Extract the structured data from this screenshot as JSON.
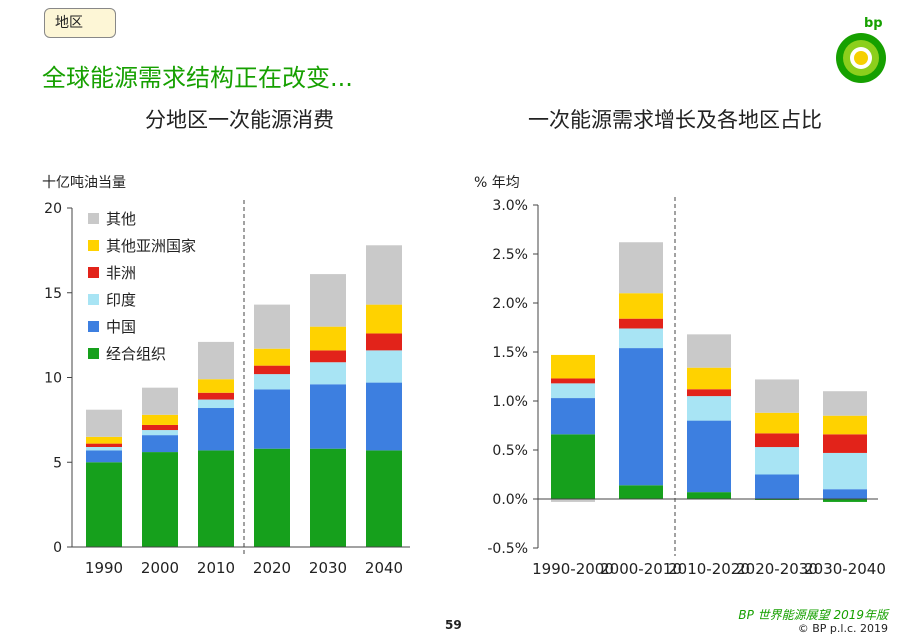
{
  "header": {
    "tag": "地区",
    "headline": "全球能源需求结构正在改变...",
    "logo_text": "bp",
    "brand_green": "#16a000",
    "brand_yellow": "#f5d000"
  },
  "footer": {
    "page_number": "59",
    "source": "BP 世界能源展望 2019年版",
    "copyright": "© BP p.l.c. 2019"
  },
  "chart_data": [
    {
      "type": "bar",
      "stacked": true,
      "title": "分地区一次能源消费",
      "ylabel": "十亿吨油当量",
      "categories": [
        "1990",
        "2000",
        "2010",
        "2020",
        "2030",
        "2040"
      ],
      "ylim": [
        0,
        20
      ],
      "yticks": [
        "0",
        "5",
        "10",
        "15",
        "20"
      ],
      "divider_after_category": 2,
      "legend_placement": "top-left",
      "series": [
        {
          "name": "经合组织",
          "color": "#16a01c",
          "values": [
            5.0,
            5.6,
            5.7,
            5.8,
            5.8,
            5.7
          ]
        },
        {
          "name": "中国",
          "color": "#3d7fe0",
          "values": [
            0.7,
            1.0,
            2.5,
            3.5,
            3.8,
            4.0
          ]
        },
        {
          "name": "印度",
          "color": "#a8e4f4",
          "values": [
            0.2,
            0.3,
            0.5,
            0.9,
            1.3,
            1.9
          ]
        },
        {
          "name": "非洲",
          "color": "#e2231a",
          "values": [
            0.2,
            0.3,
            0.4,
            0.5,
            0.7,
            1.0
          ]
        },
        {
          "name": "其他亚洲国家",
          "color": "#ffd200",
          "values": [
            0.4,
            0.6,
            0.8,
            1.0,
            1.4,
            1.7
          ]
        },
        {
          "name": "其他",
          "color": "#c9c9c9",
          "values": [
            1.6,
            1.6,
            2.2,
            2.6,
            3.1,
            3.5
          ]
        }
      ]
    },
    {
      "type": "bar",
      "stacked": true,
      "title": "一次能源需求增长及各地区占比",
      "ylabel": "% 年均",
      "categories": [
        "1990-2000",
        "2000-2010",
        "2010-2020",
        "2020-2030",
        "2030-2040"
      ],
      "ylim": [
        -0.5,
        3.0
      ],
      "yticks": [
        "-0.5%",
        "0.0%",
        "0.5%",
        "1.0%",
        "1.5%",
        "2.0%",
        "2.5%",
        "3.0%"
      ],
      "divider_after_category": 1,
      "series": [
        {
          "name": "经合组织",
          "color": "#16a01c",
          "values": [
            0.66,
            0.14,
            0.07,
            -0.01,
            -0.03
          ]
        },
        {
          "name": "中国",
          "color": "#3d7fe0",
          "values": [
            0.37,
            1.4,
            0.73,
            0.25,
            0.1
          ]
        },
        {
          "name": "印度",
          "color": "#a8e4f4",
          "values": [
            0.15,
            0.2,
            0.25,
            0.28,
            0.37
          ]
        },
        {
          "name": "非洲",
          "color": "#e2231a",
          "values": [
            0.05,
            0.1,
            0.07,
            0.14,
            0.19
          ]
        },
        {
          "name": "其他亚洲国家",
          "color": "#ffd200",
          "values": [
            0.24,
            0.26,
            0.22,
            0.21,
            0.19
          ]
        },
        {
          "name": "其他",
          "color": "#c9c9c9",
          "values": [
            -0.03,
            0.52,
            0.34,
            0.34,
            0.25
          ]
        }
      ]
    }
  ]
}
